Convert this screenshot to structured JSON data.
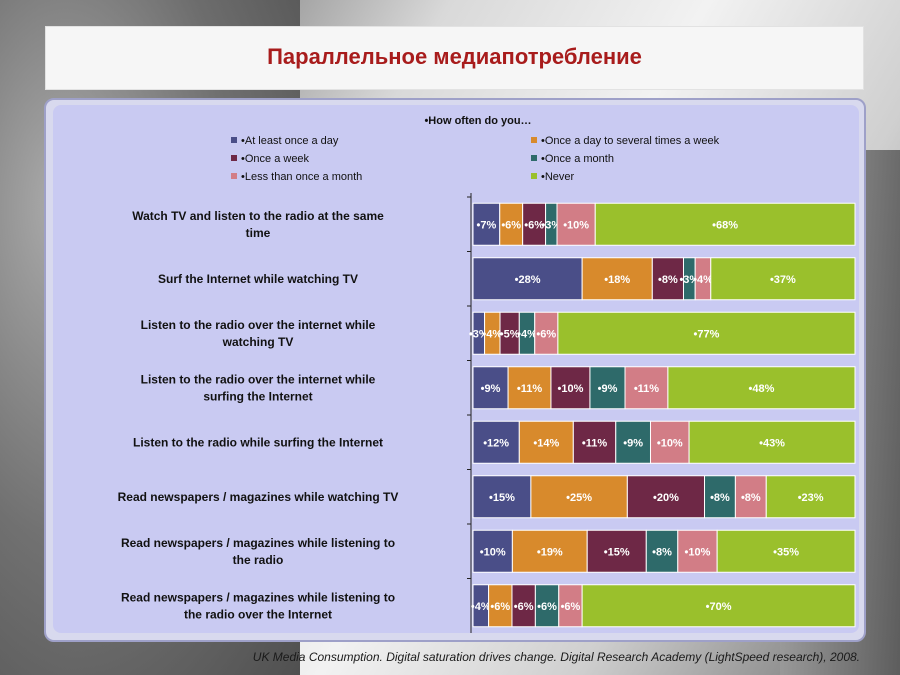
{
  "slide": {
    "title": "Параллельное медиапотребление",
    "source": "UK Media Consumption. Digital saturation drives change. Digital Research Academy (LightSpeed research), 2008."
  },
  "colors": {
    "At least once a day": "#4a4e88",
    "Once a day to several times a week": "#d88a2c",
    "Once a week": "#6e2846",
    "Once a month": "#2e6a6a",
    "Less than once a month": "#d27d86",
    "Never": "#9ac02c"
  },
  "chart_data": {
    "type": "bar",
    "orientation": "horizontal",
    "stacked": "100%",
    "title": "How often do you…",
    "legend_placement": "top",
    "categories": [
      "Watch TV and listen to the radio at the same time",
      "Surf the Internet while watching TV",
      "Listen to the radio over the internet while watching TV",
      "Listen to the radio over the internet while surfing the Internet",
      "Listen to the radio while surfing the Internet",
      "Read newspapers / magazines while watching TV",
      "Read newspapers / magazines while listening to the radio",
      "Read newspapers / magazines while listening to the radio over the Internet"
    ],
    "series": [
      {
        "name": "At least once a day",
        "values": [
          7,
          28,
          3,
          9,
          12,
          15,
          10,
          4
        ]
      },
      {
        "name": "Once a day to several times a week",
        "values": [
          6,
          18,
          4,
          11,
          14,
          25,
          19,
          6
        ]
      },
      {
        "name": "Once a week",
        "values": [
          6,
          8,
          5,
          10,
          11,
          20,
          15,
          6
        ]
      },
      {
        "name": "Once a month",
        "values": [
          3,
          3,
          4,
          9,
          9,
          8,
          8,
          6
        ]
      },
      {
        "name": "Less than once a month",
        "values": [
          10,
          4,
          6,
          11,
          10,
          8,
          10,
          6
        ]
      },
      {
        "name": "Never",
        "values": [
          68,
          37,
          77,
          48,
          43,
          23,
          35,
          70
        ]
      }
    ]
  }
}
